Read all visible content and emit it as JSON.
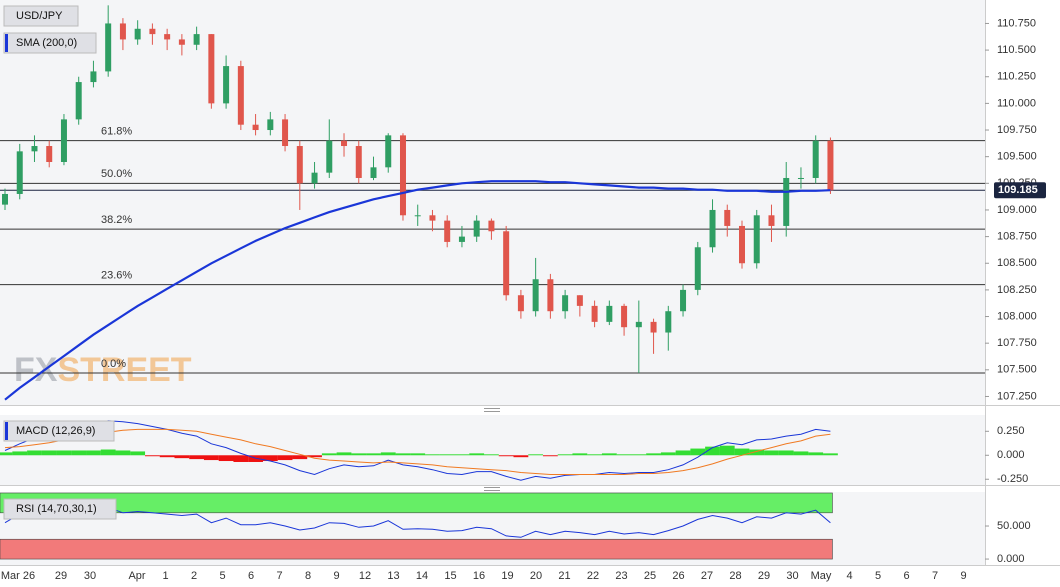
{
  "chart_data": [
    {
      "type": "candlestick",
      "title": "USD/JPY",
      "watermark": [
        "FX",
        "STREET"
      ],
      "series": [
        {
          "name": "USD/JPY",
          "up_color": "#2f9e63",
          "down_color": "#e0564c",
          "open": [
            109.05,
            109.15,
            109.55,
            109.6,
            109.45,
            109.85,
            110.2,
            110.3,
            110.75,
            110.6,
            110.7,
            110.65,
            110.6,
            110.55,
            110.65,
            110.0,
            110.35,
            109.8,
            109.75,
            109.85,
            109.6,
            109.25,
            109.35,
            109.65,
            109.6,
            109.3,
            109.4,
            109.7,
            108.95,
            108.95,
            108.9,
            108.7,
            108.75,
            108.9,
            108.8,
            108.2,
            108.05,
            108.35,
            108.05,
            108.2,
            108.1,
            107.95,
            108.1,
            107.9,
            107.95,
            107.85,
            108.05,
            108.25,
            108.65,
            109.0,
            108.85,
            108.5,
            108.95,
            108.85,
            109.3,
            109.3,
            109.65
          ],
          "high": [
            109.2,
            109.62,
            109.7,
            109.65,
            109.9,
            110.25,
            110.4,
            110.92,
            110.8,
            110.78,
            110.75,
            110.7,
            110.65,
            110.72,
            110.65,
            110.45,
            110.4,
            109.9,
            109.92,
            109.9,
            109.65,
            109.45,
            109.85,
            109.72,
            109.65,
            109.5,
            109.72,
            109.72,
            109.05,
            109.0,
            108.95,
            108.85,
            108.95,
            108.92,
            108.85,
            108.25,
            108.55,
            108.4,
            108.25,
            108.2,
            108.15,
            108.15,
            108.12,
            108.15,
            107.98,
            108.1,
            108.3,
            108.7,
            109.1,
            109.05,
            108.9,
            109.0,
            109.05,
            109.45,
            109.4,
            109.7,
            109.68
          ],
          "low": [
            109.0,
            109.1,
            109.45,
            109.4,
            109.42,
            109.8,
            110.15,
            110.25,
            110.5,
            110.55,
            110.55,
            110.5,
            110.45,
            110.5,
            109.95,
            109.95,
            109.75,
            109.7,
            109.7,
            109.55,
            109.0,
            109.2,
            109.3,
            109.5,
            109.25,
            109.28,
            109.35,
            108.9,
            108.85,
            108.8,
            108.65,
            108.65,
            108.7,
            108.72,
            108.15,
            107.98,
            108.0,
            107.98,
            107.98,
            108.0,
            107.9,
            107.92,
            107.82,
            107.47,
            107.65,
            107.68,
            108.0,
            108.2,
            108.6,
            108.75,
            108.45,
            108.45,
            108.7,
            108.75,
            109.2,
            109.25,
            109.15
          ],
          "close": [
            109.15,
            109.55,
            109.6,
            109.45,
            109.85,
            110.2,
            110.3,
            110.75,
            110.6,
            110.7,
            110.65,
            110.6,
            110.55,
            110.65,
            110.0,
            110.35,
            109.8,
            109.75,
            109.85,
            109.6,
            109.25,
            109.35,
            109.65,
            109.6,
            109.3,
            109.4,
            109.7,
            108.95,
            108.95,
            108.9,
            108.7,
            108.75,
            108.9,
            108.8,
            108.2,
            108.05,
            108.35,
            108.05,
            108.2,
            108.1,
            107.95,
            108.1,
            107.9,
            107.95,
            107.85,
            108.05,
            108.25,
            108.65,
            109.0,
            108.85,
            108.5,
            108.95,
            108.85,
            109.3,
            109.3,
            109.65,
            109.185
          ]
        },
        {
          "name": "SMA (200,0)",
          "color": "#1a36d8",
          "values": [
            107.22,
            107.33,
            107.43,
            107.53,
            107.63,
            107.73,
            107.83,
            107.92,
            108.01,
            108.1,
            108.18,
            108.26,
            108.34,
            108.42,
            108.5,
            108.57,
            108.64,
            108.71,
            108.77,
            108.83,
            108.88,
            108.93,
            108.98,
            109.02,
            109.06,
            109.1,
            109.13,
            109.16,
            109.19,
            109.21,
            109.23,
            109.25,
            109.26,
            109.27,
            109.27,
            109.27,
            109.27,
            109.26,
            109.26,
            109.25,
            109.24,
            109.23,
            109.22,
            109.21,
            109.21,
            109.2,
            109.2,
            109.19,
            109.19,
            109.18,
            109.18,
            109.18,
            109.17,
            109.17,
            109.18,
            109.18,
            109.185
          ]
        }
      ],
      "fib_levels": [
        {
          "label": "61.8%",
          "value": 109.65
        },
        {
          "label": "50.0%",
          "value": 109.25
        },
        {
          "label": "38.2%",
          "value": 108.82
        },
        {
          "label": "23.6%",
          "value": 108.3
        },
        {
          "label": "0.0%",
          "value": 107.47
        }
      ],
      "ylim": [
        107.17,
        110.97
      ],
      "yticks": [
        {
          "value": 107.25,
          "label": "107.250"
        },
        {
          "value": 107.5,
          "label": "107.500"
        },
        {
          "value": 107.75,
          "label": "107.750"
        },
        {
          "value": 108.0,
          "label": "108.000"
        },
        {
          "value": 108.25,
          "label": "108.250"
        },
        {
          "value": 108.5,
          "label": "108.500"
        },
        {
          "value": 108.75,
          "label": "108.750"
        },
        {
          "value": 109.0,
          "label": "109.000"
        },
        {
          "value": 109.25,
          "label": "109.250"
        },
        {
          "value": 109.5,
          "label": "109.500"
        },
        {
          "value": 109.75,
          "label": "109.750"
        },
        {
          "value": 110.0,
          "label": "110.000"
        },
        {
          "value": 110.25,
          "label": "110.250"
        },
        {
          "value": 110.5,
          "label": "110.500"
        },
        {
          "value": 110.75,
          "label": "110.750"
        }
      ],
      "x_tick_labels": [
        "Mar 26",
        "29",
        "30",
        "Apr",
        "1",
        "2",
        "5",
        "6",
        "7",
        "8",
        "9",
        "12",
        "13",
        "14",
        "15",
        "16",
        "19",
        "20",
        "21",
        "22",
        "23",
        "25",
        "26",
        "27",
        "28",
        "29",
        "30",
        "May",
        "4",
        "5",
        "6",
        "7",
        "9"
      ]
    },
    {
      "type": "macd",
      "title": "MACD (12,26,9)",
      "macd": {
        "color": "#1a36d8",
        "values": [
          0.05,
          0.12,
          0.18,
          0.22,
          0.26,
          0.3,
          0.32,
          0.36,
          0.35,
          0.33,
          0.3,
          0.27,
          0.23,
          0.2,
          0.12,
          0.08,
          0.02,
          -0.03,
          -0.06,
          -0.1,
          -0.16,
          -0.2,
          -0.14,
          -0.1,
          -0.12,
          -0.11,
          -0.05,
          -0.1,
          -0.12,
          -0.15,
          -0.19,
          -0.2,
          -0.17,
          -0.17,
          -0.22,
          -0.26,
          -0.22,
          -0.24,
          -0.21,
          -0.2,
          -0.2,
          -0.18,
          -0.19,
          -0.18,
          -0.18,
          -0.15,
          -0.1,
          -0.02,
          0.08,
          0.13,
          0.11,
          0.16,
          0.17,
          0.2,
          0.22,
          0.27,
          0.25
        ]
      },
      "signal": {
        "color": "#f07a22",
        "values": [
          0.08,
          0.09,
          0.11,
          0.13,
          0.16,
          0.19,
          0.21,
          0.24,
          0.26,
          0.27,
          0.27,
          0.27,
          0.26,
          0.25,
          0.22,
          0.19,
          0.16,
          0.12,
          0.09,
          0.05,
          0.01,
          -0.03,
          -0.05,
          -0.06,
          -0.07,
          -0.08,
          -0.07,
          -0.08,
          -0.09,
          -0.1,
          -0.12,
          -0.13,
          -0.14,
          -0.15,
          -0.16,
          -0.18,
          -0.19,
          -0.2,
          -0.2,
          -0.2,
          -0.2,
          -0.2,
          -0.2,
          -0.19,
          -0.19,
          -0.18,
          -0.16,
          -0.13,
          -0.09,
          -0.04,
          0.0,
          0.04,
          0.08,
          0.12,
          0.15,
          0.2,
          0.22
        ]
      },
      "histogram": {
        "pos_color": "#33dd33",
        "neg_color": "#ee1111",
        "values": [
          0.03,
          0.04,
          0.05,
          0.05,
          0.05,
          0.05,
          0.05,
          0.06,
          0.05,
          0.04,
          -0.01,
          -0.02,
          -0.03,
          -0.04,
          -0.05,
          -0.06,
          -0.07,
          -0.07,
          -0.06,
          -0.05,
          -0.04,
          -0.02,
          0.02,
          0.03,
          0.02,
          0.02,
          0.03,
          0.02,
          0.02,
          0.01,
          0.01,
          0.01,
          0.02,
          0.01,
          -0.01,
          -0.02,
          0.01,
          -0.01,
          0.01,
          0.02,
          0.01,
          0.02,
          0.01,
          0.01,
          0.02,
          0.03,
          0.05,
          0.07,
          0.09,
          0.1,
          0.07,
          0.06,
          0.05,
          0.05,
          0.04,
          0.03,
          0.02
        ]
      },
      "ylim": [
        -0.31,
        0.42
      ],
      "yticks": [
        {
          "value": 0.25,
          "label": "0.250"
        },
        {
          "value": 0,
          "label": "0.000"
        },
        {
          "value": -0.25,
          "label": "-0.250"
        }
      ]
    },
    {
      "type": "rsi",
      "title": "RSI (14,70,30,1)",
      "color": "#1a36d8",
      "values": [
        55,
        68,
        68,
        62,
        70,
        72,
        72,
        78,
        70,
        72,
        70,
        68,
        66,
        68,
        55,
        62,
        52,
        52,
        55,
        50,
        44,
        47,
        55,
        54,
        48,
        50,
        58,
        45,
        46,
        45,
        42,
        43,
        48,
        46,
        35,
        33,
        42,
        37,
        42,
        40,
        37,
        42,
        38,
        40,
        37,
        43,
        50,
        60,
        66,
        62,
        55,
        64,
        62,
        70,
        68,
        74,
        55
      ],
      "bands": [
        {
          "from": 70,
          "to": 100,
          "color": "#66ee66"
        },
        {
          "from": 0,
          "to": 30,
          "color": "#f27a7a"
        }
      ],
      "ylim": [
        -9,
        101.5
      ],
      "yticks": [
        {
          "value": 50,
          "label": "50.000"
        },
        {
          "value": 0,
          "label": "0.000"
        }
      ]
    }
  ]
}
